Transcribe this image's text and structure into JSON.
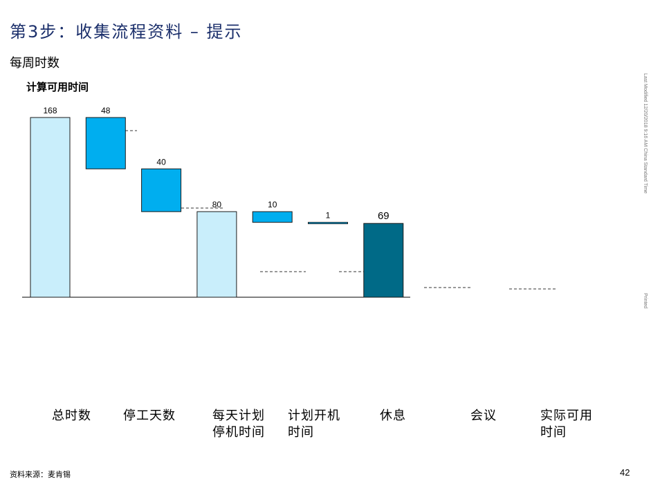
{
  "header": {
    "title": "第3步：收集流程资料 – 提示",
    "subtitle": "每周时数"
  },
  "chart_data": {
    "type": "bar",
    "title": "计算可用时间",
    "categories": [
      "总时数",
      "停工天数",
      "每天计划停机时间",
      "计划开机时间",
      "休息",
      "会议",
      "实际可用时间"
    ],
    "bars": [
      {
        "category": "总时数",
        "value": 168,
        "bottom": 0,
        "top": 168,
        "label": "168",
        "color": "#c9eefb"
      },
      {
        "category": "停工天数",
        "value": 48,
        "bottom": 120,
        "top": 168,
        "label": "48",
        "color": "#00aeef"
      },
      {
        "category": "每天计划停机时间",
        "value": 40,
        "bottom": 80,
        "top": 120,
        "label": "40",
        "color": "#00aeef"
      },
      {
        "category": "计划开机时间",
        "value": 80,
        "bottom": 0,
        "top": 80,
        "label": "80",
        "color": "#c9eefb"
      },
      {
        "category": "休息",
        "value": 10,
        "bottom": 70,
        "top": 80,
        "label": "10",
        "color": "#00aeef"
      },
      {
        "category": "会议",
        "value": 1,
        "bottom": 69,
        "top": 70,
        "label": "1",
        "color": "#00aeef"
      },
      {
        "category": "实际可用时间",
        "value": 69,
        "bottom": 0,
        "top": 69,
        "label": "69",
        "color": "#006a87"
      }
    ],
    "ylim": [
      0,
      168
    ],
    "grid": false,
    "legend": "none"
  },
  "labels": {
    "cat0": "总时数",
    "cat1": "停工天数",
    "cat2": "每天计划停机时间",
    "cat3": "计划开机时间",
    "cat4": "休息",
    "cat5": "会议",
    "cat6": "实际可用时间"
  },
  "side": {
    "modified": "Last Modified 12/20/2018 9:16 AM China Standard Time",
    "printed": "Printed"
  },
  "footer": {
    "source": "资料来源：麦肯锡",
    "page": "42"
  }
}
